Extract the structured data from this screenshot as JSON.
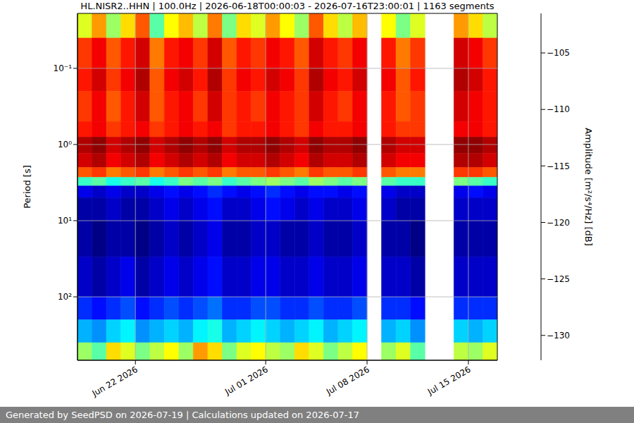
{
  "chart_data": {
    "type": "heatmap",
    "title": "HL.NISR2..HHN | 100.0Hz | 2026-06-18T00:00:03 - 2026-07-16T23:00:01 | 1163 segments",
    "footer": "Generated by SeedPSD on 2026-07-19 | Calculations updated on 2026-07-17",
    "y_label": "Period [s]",
    "log": "y",
    "grid": true,
    "xlim": [
      "2026-06-18",
      "2026-07-17"
    ],
    "xticks": [
      {
        "value": "2026-06-22",
        "label": "Jun 22 2026"
      },
      {
        "value": "2026-07-01",
        "label": "Jul 01 2026"
      },
      {
        "value": "2026-07-08",
        "label": "Jul 08 2026"
      },
      {
        "value": "2026-07-15",
        "label": "Jul 15 2026"
      }
    ],
    "ylim": [
      0.019,
      680
    ],
    "yticks": [
      {
        "value": 0.1,
        "label": "10⁻¹"
      },
      {
        "value": 1,
        "label": "10⁰"
      },
      {
        "value": 10,
        "label": "10¹"
      },
      {
        "value": 100,
        "label": "10²"
      }
    ],
    "x_edges": [
      "2026-06-18",
      "2026-06-19",
      "2026-06-20",
      "2026-06-21",
      "2026-06-22",
      "2026-06-23",
      "2026-06-24",
      "2026-06-25",
      "2026-06-26",
      "2026-06-27",
      "2026-06-28",
      "2026-06-29",
      "2026-06-30",
      "2026-07-01",
      "2026-07-02",
      "2026-07-03",
      "2026-07-04",
      "2026-07-05",
      "2026-07-06",
      "2026-07-07",
      "2026-07-08",
      "2026-07-09",
      "2026-07-10",
      "2026-07-11",
      "2026-07-12",
      "2026-07-13",
      "2026-07-14",
      "2026-07-15",
      "2026-07-16",
      "2026-07-17"
    ],
    "period_edges": [
      0.019,
      0.04,
      0.1,
      0.2,
      0.5,
      0.8,
      1.3,
      2,
      2.7,
      3.5,
      5,
      10,
      30,
      100,
      200,
      400,
      680
    ],
    "cells": [
      [
        -114,
        -110,
        -116,
        -112,
        -108,
        -118,
        -113,
        -111,
        -115,
        -109,
        -117,
        -112,
        -114,
        -110,
        -113,
        -116,
        -108,
        -112,
        -115,
        -111,
        null,
        -113,
        -117,
        -114,
        null,
        null,
        -110,
        -112,
        -115
      ],
      [
        -107,
        -105,
        -108,
        -106,
        -104,
        -109,
        -106,
        -105,
        -107,
        -104,
        -108,
        -106,
        -107,
        -105,
        -106,
        -108,
        -104,
        -106,
        -107,
        -105,
        null,
        -106,
        -109,
        -107,
        null,
        null,
        -104,
        -105,
        -107
      ],
      [
        -106,
        -104,
        -107,
        -105,
        -103,
        -108,
        -105,
        -104,
        -106,
        -103,
        -107,
        -105,
        -106,
        -104,
        -105,
        -107,
        -103,
        -105,
        -106,
        -104,
        null,
        -105,
        -108,
        -106,
        null,
        null,
        -103,
        -104,
        -106
      ],
      [
        -107,
        -105,
        -108,
        -106,
        -104,
        -108,
        -106,
        -105,
        -107,
        -104,
        -107,
        -106,
        -107,
        -105,
        -106,
        -107,
        -104,
        -106,
        -107,
        -105,
        null,
        -106,
        -108,
        -107,
        null,
        null,
        -104,
        -105,
        -106
      ],
      [
        -106,
        -105,
        -107,
        -106,
        -105,
        -107,
        -106,
        -105,
        -106,
        -105,
        -107,
        -106,
        -106,
        -105,
        -106,
        -107,
        -105,
        -106,
        -106,
        -105,
        null,
        -106,
        -107,
        -107,
        null,
        null,
        -105,
        -105,
        -106
      ],
      [
        -103,
        -102,
        -104,
        -103,
        -102,
        -104,
        -103,
        -102,
        -103,
        -102,
        -104,
        -103,
        -103,
        -102,
        -103,
        -104,
        -102,
        -103,
        -103,
        -102,
        null,
        -103,
        -104,
        -104,
        null,
        null,
        -102,
        -102,
        -103
      ],
      [
        -104,
        -103,
        -105,
        -104,
        -103,
        -105,
        -104,
        -103,
        -104,
        -103,
        -105,
        -104,
        -104,
        -103,
        -104,
        -105,
        -103,
        -104,
        -104,
        -103,
        null,
        -104,
        -105,
        -105,
        null,
        null,
        -103,
        -103,
        -104
      ],
      [
        -108,
        -107,
        -109,
        -108,
        -107,
        -109,
        -108,
        -107,
        -108,
        -107,
        -109,
        -108,
        -108,
        -107,
        -108,
        -109,
        -107,
        -108,
        -108,
        -107,
        null,
        -108,
        -109,
        -109,
        null,
        null,
        -107,
        -107,
        -108
      ],
      [
        -119,
        -118,
        -120,
        -119,
        -118,
        -120,
        -119,
        -117,
        -118,
        -117,
        -119,
        -118,
        -117,
        -116,
        -117,
        -118,
        -116,
        -117,
        -118,
        -117,
        null,
        -118,
        -119,
        -119,
        null,
        null,
        -117,
        -118,
        -119
      ],
      [
        -129,
        -130,
        -129,
        -130,
        -130,
        -129,
        -128,
        -129,
        -128,
        -127,
        -128,
        -129,
        -128,
        -127,
        -128,
        -129,
        -128,
        -128,
        -129,
        -128,
        null,
        -129,
        -130,
        -130,
        null,
        null,
        -129,
        -128,
        -129
      ],
      [
        -131,
        -131,
        -130,
        -131,
        -131,
        -130,
        -129,
        -130,
        -129,
        -128,
        -130,
        -130,
        -129,
        -128,
        -129,
        -130,
        -129,
        -130,
        -130,
        -129,
        null,
        -130,
        -131,
        -131,
        null,
        null,
        -130,
        -130,
        -130
      ],
      [
        -131,
        -132,
        -131,
        -131,
        -132,
        -131,
        -130,
        -131,
        -130,
        -129,
        -131,
        -131,
        -130,
        -130,
        -131,
        -131,
        -130,
        -131,
        -131,
        -130,
        null,
        -131,
        -131,
        -132,
        null,
        null,
        -131,
        -131,
        -131
      ],
      [
        -130,
        -131,
        -130,
        -129,
        -131,
        -130,
        -129,
        -130,
        -129,
        -128,
        -130,
        -130,
        -129,
        -129,
        -130,
        -130,
        -129,
        -130,
        -130,
        -129,
        null,
        -130,
        -130,
        -131,
        null,
        null,
        -130,
        -130,
        -130
      ],
      [
        -127,
        -128,
        -127,
        -126,
        -128,
        -127,
        -126,
        -127,
        -126,
        -125,
        -127,
        -127,
        -126,
        -126,
        -127,
        -127,
        -126,
        -127,
        -127,
        -126,
        null,
        -127,
        -127,
        -128,
        null,
        null,
        -127,
        -127,
        -127
      ],
      [
        -123,
        -124,
        -122,
        -121,
        -124,
        -123,
        -122,
        -123,
        -121,
        -120,
        -123,
        -122,
        -121,
        -122,
        -123,
        -122,
        -121,
        -123,
        -122,
        -121,
        null,
        -123,
        -122,
        -124,
        null,
        null,
        -122,
        -123,
        -122
      ],
      [
        -116,
        -118,
        -112,
        -114,
        -117,
        -115,
        -113,
        -116,
        -110,
        -112,
        -117,
        -114,
        -113,
        -115,
        -116,
        -112,
        -114,
        -117,
        -115,
        -113,
        null,
        -116,
        -114,
        -118,
        null,
        null,
        -115,
        -116,
        -114
      ]
    ],
    "colorbar": {
      "label": "Amplitude [m²/s⁴/Hz] [dB]",
      "range": [
        -132.2,
        -101.5
      ],
      "ticks": [
        {
          "value": -105,
          "label": "−105"
        },
        {
          "value": -110,
          "label": "−110"
        },
        {
          "value": -115,
          "label": "−115"
        },
        {
          "value": -120,
          "label": "−120"
        },
        {
          "value": -125,
          "label": "−125"
        },
        {
          "value": -130,
          "label": "−130"
        }
      ]
    }
  }
}
